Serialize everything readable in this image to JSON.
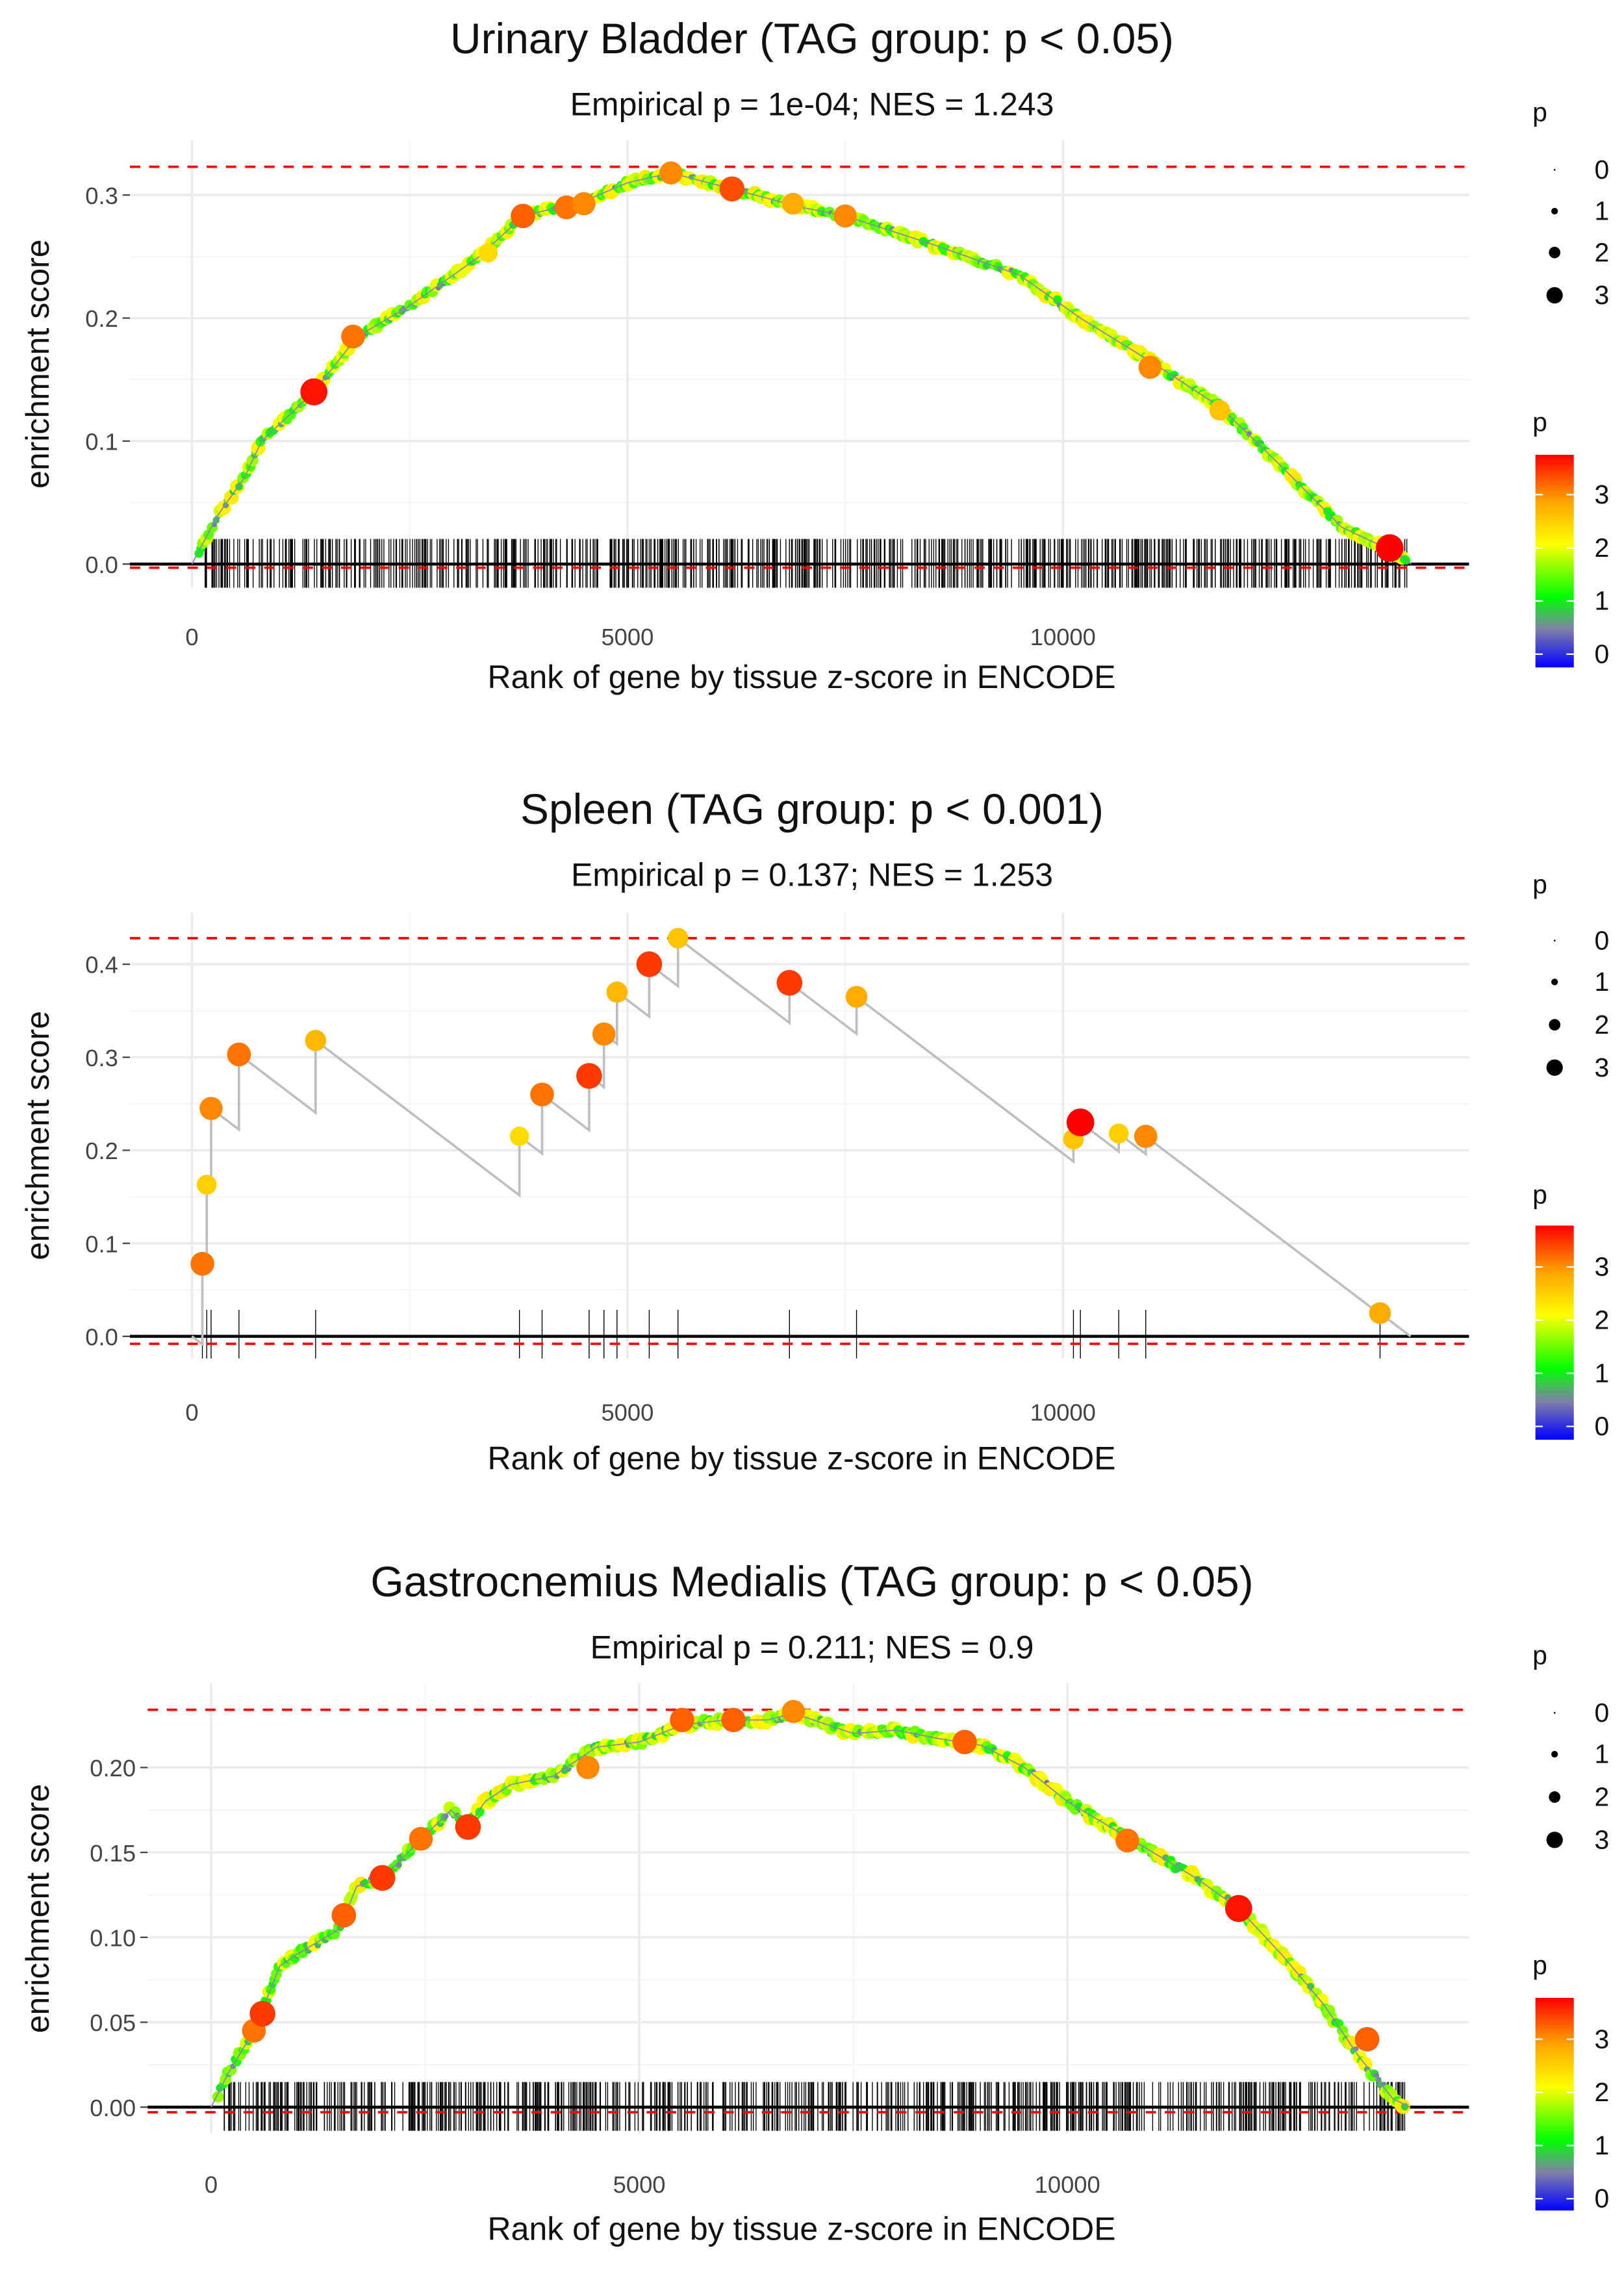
{
  "legend": {
    "size_title": "p",
    "size_levels": [
      "0",
      "1",
      "2",
      "3"
    ],
    "color_title": "p",
    "color_levels": [
      "3",
      "2",
      "1",
      "0"
    ]
  },
  "chart_data": [
    {
      "type": "line",
      "title": "Urinary Bladder (TAG group: p < 0.05)",
      "subtitle": "Empirical p = 1e-04; NES = 1.243",
      "xlabel": "Rank of gene by tissue z-score in ENCODE",
      "ylabel": "enrichment score",
      "xlim": [
        0,
        14000
      ],
      "ylim": [
        -0.01,
        0.33
      ],
      "xticks": [
        "0",
        "5000",
        "10000"
      ],
      "yticks": [
        "0.0",
        "0.1",
        "0.2",
        "0.3"
      ],
      "ytick_values": [
        0,
        0.1,
        0.2,
        0.3
      ],
      "max_es": 0.323,
      "min_es": -0.003,
      "dense": true,
      "curve": [
        [
          0,
          0
        ],
        [
          300,
          0.04
        ],
        [
          600,
          0.07
        ],
        [
          800,
          0.1
        ],
        [
          1400,
          0.14
        ],
        [
          1900,
          0.185
        ],
        [
          2500,
          0.21
        ],
        [
          3300,
          0.25
        ],
        [
          3800,
          0.283
        ],
        [
          4500,
          0.295
        ],
        [
          5000,
          0.31
        ],
        [
          5500,
          0.318
        ],
        [
          6200,
          0.305
        ],
        [
          7000,
          0.29
        ],
        [
          7500,
          0.283
        ],
        [
          8500,
          0.26
        ],
        [
          9500,
          0.235
        ],
        [
          10200,
          0.2
        ],
        [
          11000,
          0.165
        ],
        [
          11800,
          0.128
        ],
        [
          12500,
          0.08
        ],
        [
          13200,
          0.03
        ],
        [
          13800,
          0.01
        ],
        [
          14000,
          0
        ]
      ],
      "highlight_points": [
        [
          1400,
          0.14,
          3.8
        ],
        [
          1850,
          0.185,
          3.3
        ],
        [
          3400,
          0.253,
          2.6
        ],
        [
          3800,
          0.283,
          3.4
        ],
        [
          4300,
          0.29,
          3.3
        ],
        [
          4500,
          0.293,
          3.2
        ],
        [
          5500,
          0.318,
          3.2
        ],
        [
          6200,
          0.305,
          3.5
        ],
        [
          6900,
          0.293,
          3.0
        ],
        [
          7500,
          0.283,
          3.2
        ],
        [
          11000,
          0.16,
          3.2
        ],
        [
          11800,
          0.125,
          2.8
        ],
        [
          13750,
          0.013,
          3.9
        ]
      ],
      "rug_count": 700
    },
    {
      "type": "line",
      "title": "Spleen (TAG group: p < 0.001)",
      "subtitle": "Empirical p = 0.137; NES = 1.253",
      "xlabel": "Rank of gene by tissue z-score in ENCODE",
      "ylabel": "enrichment score",
      "xlim": [
        0,
        14000
      ],
      "ylim": [
        -0.01,
        0.44
      ],
      "xticks": [
        "0",
        "5000",
        "10000"
      ],
      "yticks": [
        "0.0",
        "0.1",
        "0.2",
        "0.3",
        "0.4"
      ],
      "ytick_values": [
        0,
        0.1,
        0.2,
        0.3,
        0.4
      ],
      "max_es": 0.428,
      "min_es": -0.008,
      "dense": false,
      "decline_per_rank": 7.11e-05,
      "hits": [
        [
          120,
          0.078,
          3.3
        ],
        [
          170,
          0.163,
          2.7
        ],
        [
          220,
          0.245,
          3.2
        ],
        [
          540,
          0.303,
          3.3
        ],
        [
          1420,
          0.318,
          2.9
        ],
        [
          3760,
          0.215,
          2.6
        ],
        [
          4020,
          0.26,
          3.3
        ],
        [
          4560,
          0.28,
          3.6
        ],
        [
          4730,
          0.325,
          3.2
        ],
        [
          4880,
          0.37,
          2.9
        ],
        [
          5250,
          0.4,
          3.6
        ],
        [
          5580,
          0.428,
          2.8
        ],
        [
          6860,
          0.38,
          3.6
        ],
        [
          7630,
          0.365,
          3.0
        ],
        [
          10120,
          0.212,
          2.8
        ],
        [
          10200,
          0.23,
          3.9
        ],
        [
          10640,
          0.218,
          2.7
        ],
        [
          10950,
          0.215,
          3.2
        ],
        [
          13640,
          0.025,
          3.0
        ]
      ],
      "end_rank": 13990
    },
    {
      "type": "line",
      "title": "Gastrocnemius Medialis (TAG group: p < 0.05)",
      "subtitle": "Empirical p = 0.211; NES = 0.9",
      "xlabel": "Rank of gene by tissue z-score in ENCODE",
      "ylabel": "enrichment score",
      "xlim": [
        0,
        14000
      ],
      "ylim": [
        -0.01,
        0.24
      ],
      "xticks": [
        "0",
        "5000",
        "10000"
      ],
      "yticks": [
        "0.00",
        "0.05",
        "0.10",
        "0.15",
        "0.20"
      ],
      "ytick_values": [
        0,
        0.05,
        0.1,
        0.15,
        0.2
      ],
      "max_es": 0.234,
      "min_es": -0.003,
      "dense": true,
      "curve": [
        [
          0,
          0
        ],
        [
          200,
          0.02
        ],
        [
          500,
          0.045
        ],
        [
          700,
          0.07
        ],
        [
          800,
          0.083
        ],
        [
          1000,
          0.09
        ],
        [
          1500,
          0.105
        ],
        [
          1700,
          0.13
        ],
        [
          2000,
          0.135
        ],
        [
          2500,
          0.16
        ],
        [
          2800,
          0.175
        ],
        [
          3000,
          0.165
        ],
        [
          3200,
          0.18
        ],
        [
          3500,
          0.19
        ],
        [
          4000,
          0.195
        ],
        [
          4500,
          0.212
        ],
        [
          5000,
          0.215
        ],
        [
          5500,
          0.225
        ],
        [
          6000,
          0.228
        ],
        [
          6500,
          0.228
        ],
        [
          6800,
          0.232
        ],
        [
          7500,
          0.22
        ],
        [
          8000,
          0.222
        ],
        [
          8500,
          0.217
        ],
        [
          9000,
          0.213
        ],
        [
          9500,
          0.2
        ],
        [
          10000,
          0.18
        ],
        [
          10500,
          0.165
        ],
        [
          11000,
          0.15
        ],
        [
          11500,
          0.135
        ],
        [
          12000,
          0.117
        ],
        [
          12500,
          0.09
        ],
        [
          13000,
          0.06
        ],
        [
          13400,
          0.03
        ],
        [
          13800,
          0.005
        ],
        [
          14000,
          0
        ]
      ],
      "highlight_points": [
        [
          500,
          0.045,
          3.3
        ],
        [
          600,
          0.055,
          3.6
        ],
        [
          1550,
          0.113,
          3.4
        ],
        [
          2000,
          0.135,
          3.6
        ],
        [
          2450,
          0.158,
          3.3
        ],
        [
          3000,
          0.165,
          3.6
        ],
        [
          4400,
          0.2,
          3.2
        ],
        [
          5500,
          0.228,
          3.4
        ],
        [
          6100,
          0.228,
          3.4
        ],
        [
          6800,
          0.233,
          3.2
        ],
        [
          8800,
          0.215,
          3.4
        ],
        [
          10700,
          0.157,
          3.3
        ],
        [
          12000,
          0.117,
          3.8
        ],
        [
          13500,
          0.04,
          3.4
        ]
      ],
      "rug_count": 700
    }
  ]
}
